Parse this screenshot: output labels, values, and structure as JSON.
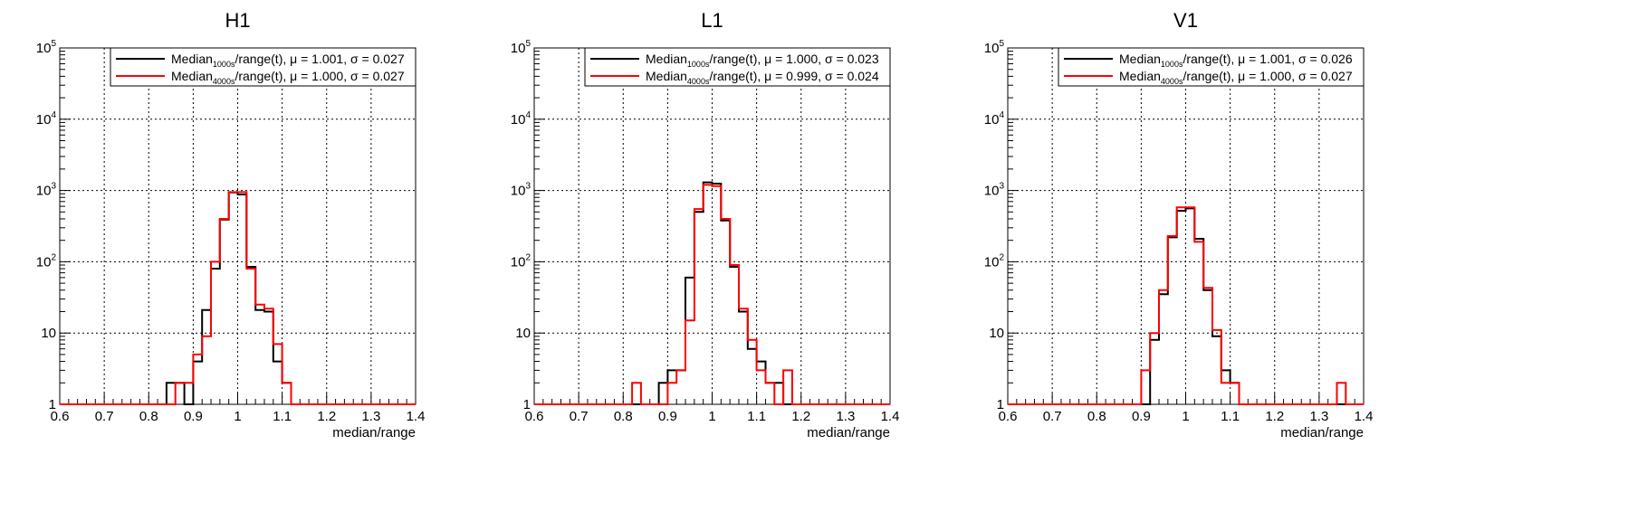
{
  "figure": {
    "panels": [
      {
        "title": "H1",
        "xlabel": "median/range",
        "legend": [
          {
            "name": "Median",
            "sub": "1000s",
            "rest": "/range(t), μ = 1.001, σ = 0.027",
            "color": "#000000"
          },
          {
            "name": "Median",
            "sub": "4000s",
            "rest": "/range(t), μ = 1.000, σ = 0.027",
            "color": "#ff0000"
          }
        ]
      },
      {
        "title": "L1",
        "xlabel": "median/range",
        "legend": [
          {
            "name": "Median",
            "sub": "1000s",
            "rest": "/range(t), μ = 1.000, σ = 0.023",
            "color": "#000000"
          },
          {
            "name": "Median",
            "sub": "4000s",
            "rest": "/range(t), μ = 0.999, σ = 0.024",
            "color": "#ff0000"
          }
        ]
      },
      {
        "title": "V1",
        "xlabel": "median/range",
        "legend": [
          {
            "name": "Median",
            "sub": "1000s",
            "rest": "/range(t), μ = 1.001, σ = 0.026",
            "color": "#000000"
          },
          {
            "name": "Median",
            "sub": "4000s",
            "rest": "/range(t), μ = 1.000, σ = 0.027",
            "color": "#ff0000"
          }
        ]
      }
    ]
  },
  "chart_data": [
    {
      "type": "histogram",
      "title": "H1",
      "xlabel": "median/range",
      "ylabel": "",
      "xlim": [
        0.6,
        1.4
      ],
      "ylim": [
        1,
        100000
      ],
      "yscale": "log",
      "grid": true,
      "legend_position": "top-right",
      "x_ticks": [
        "0.6",
        "0.7",
        "0.8",
        "0.9",
        "1",
        "1.1",
        "1.2",
        "1.3",
        "1.4"
      ],
      "y_ticks": [
        {
          "value": 1,
          "base": "1",
          "exp": ""
        },
        {
          "value": 10,
          "base": "10",
          "exp": ""
        },
        {
          "value": 100,
          "base": "10",
          "exp": "2"
        },
        {
          "value": 1000,
          "base": "10",
          "exp": "3"
        },
        {
          "value": 10000,
          "base": "10",
          "exp": "4"
        },
        {
          "value": 100000,
          "base": "10",
          "exp": "5"
        }
      ],
      "bin_edges_start": 0.6,
      "bin_width": 0.02,
      "series": [
        {
          "name": "Median_1000s/range(t)",
          "color": "#000000",
          "counts": [
            1,
            1,
            1,
            1,
            1,
            1,
            1,
            1,
            1,
            1,
            1,
            1,
            2,
            2,
            1,
            4,
            21,
            80,
            390,
            940,
            880,
            85,
            21,
            20,
            4,
            2,
            1,
            1,
            1,
            1,
            1,
            1,
            1,
            1,
            1,
            1,
            1,
            1,
            1,
            1
          ]
        },
        {
          "name": "Median_4000s/range(t)",
          "color": "#ff0000",
          "counts": [
            1,
            1,
            1,
            1,
            1,
            1,
            1,
            1,
            1,
            1,
            1,
            1,
            1,
            2,
            2,
            5,
            9,
            100,
            400,
            950,
            950,
            80,
            25,
            22,
            7,
            2,
            1,
            1,
            1,
            1,
            1,
            1,
            1,
            1,
            1,
            1,
            1,
            1,
            1,
            1
          ]
        }
      ]
    },
    {
      "type": "histogram",
      "title": "L1",
      "xlabel": "median/range",
      "ylabel": "",
      "xlim": [
        0.6,
        1.4
      ],
      "ylim": [
        1,
        100000
      ],
      "yscale": "log",
      "grid": true,
      "legend_position": "top-right",
      "x_ticks": [
        "0.6",
        "0.7",
        "0.8",
        "0.9",
        "1",
        "1.1",
        "1.2",
        "1.3",
        "1.4"
      ],
      "y_ticks": [
        {
          "value": 1,
          "base": "1",
          "exp": ""
        },
        {
          "value": 10,
          "base": "10",
          "exp": ""
        },
        {
          "value": 100,
          "base": "10",
          "exp": "2"
        },
        {
          "value": 1000,
          "base": "10",
          "exp": "3"
        },
        {
          "value": 10000,
          "base": "10",
          "exp": "4"
        },
        {
          "value": 100000,
          "base": "10",
          "exp": "5"
        }
      ],
      "bin_edges_start": 0.6,
      "bin_width": 0.02,
      "series": [
        {
          "name": "Median_1000s/range(t)",
          "color": "#000000",
          "counts": [
            1,
            1,
            1,
            1,
            1,
            1,
            1,
            1,
            1,
            1,
            1,
            1,
            1,
            1,
            2,
            3,
            3,
            60,
            500,
            1300,
            1250,
            380,
            85,
            20,
            6,
            4,
            2,
            2,
            1,
            1,
            1,
            1,
            1,
            1,
            1,
            1,
            1,
            1,
            1,
            1
          ]
        },
        {
          "name": "Median_4000s/range(t)",
          "color": "#ff0000",
          "counts": [
            1,
            1,
            1,
            1,
            1,
            1,
            1,
            1,
            1,
            1,
            1,
            2,
            1,
            1,
            1,
            2,
            3,
            15,
            550,
            1200,
            1150,
            400,
            90,
            22,
            8,
            3,
            2,
            1,
            3,
            1,
            1,
            1,
            1,
            1,
            1,
            1,
            1,
            1,
            1,
            1
          ]
        }
      ]
    },
    {
      "type": "histogram",
      "title": "V1",
      "xlabel": "median/range",
      "ylabel": "",
      "xlim": [
        0.6,
        1.4
      ],
      "ylim": [
        1,
        100000
      ],
      "yscale": "log",
      "grid": true,
      "legend_position": "top-right",
      "x_ticks": [
        "0.6",
        "0.7",
        "0.8",
        "0.9",
        "1",
        "1.1",
        "1.2",
        "1.3",
        "1.4"
      ],
      "y_ticks": [
        {
          "value": 1,
          "base": "1",
          "exp": ""
        },
        {
          "value": 10,
          "base": "10",
          "exp": ""
        },
        {
          "value": 100,
          "base": "10",
          "exp": "2"
        },
        {
          "value": 1000,
          "base": "10",
          "exp": "3"
        },
        {
          "value": 10000,
          "base": "10",
          "exp": "4"
        },
        {
          "value": 100000,
          "base": "10",
          "exp": "5"
        }
      ],
      "bin_edges_start": 0.6,
      "bin_width": 0.02,
      "series": [
        {
          "name": "Median_1000s/range(t)",
          "color": "#000000",
          "counts": [
            1,
            1,
            1,
            1,
            1,
            1,
            1,
            1,
            1,
            1,
            1,
            1,
            1,
            1,
            1,
            1,
            8,
            35,
            220,
            520,
            560,
            210,
            40,
            9,
            3,
            2,
            1,
            1,
            1,
            1,
            1,
            1,
            1,
            1,
            1,
            1,
            1,
            1,
            1,
            1
          ]
        },
        {
          "name": "Median_4000s/range(t)",
          "color": "#ff0000",
          "counts": [
            1,
            1,
            1,
            1,
            1,
            1,
            1,
            1,
            1,
            1,
            1,
            1,
            1,
            1,
            1,
            3,
            10,
            40,
            230,
            580,
            580,
            190,
            43,
            11,
            2,
            2,
            1,
            1,
            1,
            1,
            1,
            1,
            1,
            1,
            1,
            1,
            1,
            2,
            1,
            1
          ]
        }
      ]
    }
  ]
}
